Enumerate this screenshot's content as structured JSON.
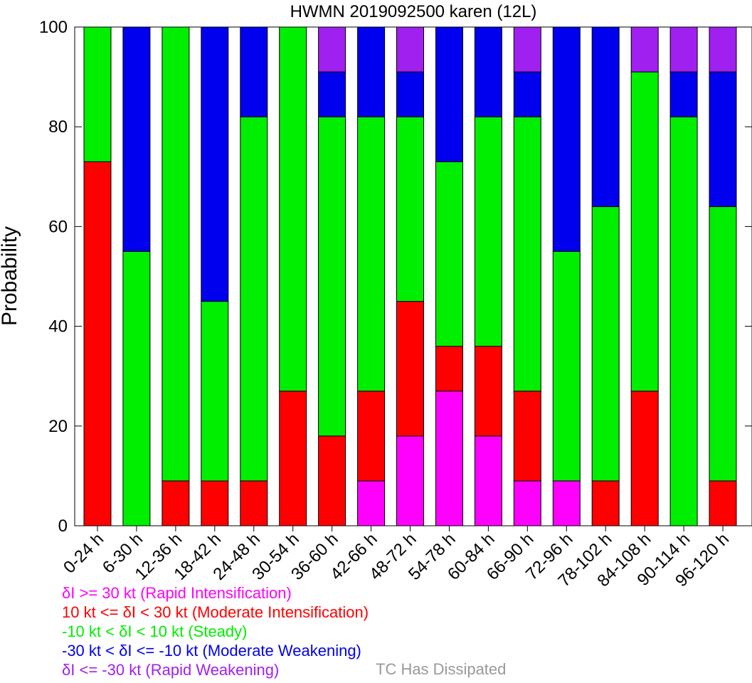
{
  "chart_data": {
    "type": "bar",
    "stacked": true,
    "title": "HWMN 2019092500 karen (12L)",
    "xlabel": "",
    "ylabel": "Probability",
    "ylim": [
      0,
      100
    ],
    "yticks": [
      0,
      20,
      40,
      60,
      80,
      100
    ],
    "grid": false,
    "legend_position": "bottom-left",
    "categories": [
      "0-24 h",
      "6-30 h",
      "12-36 h",
      "18-42 h",
      "24-48 h",
      "30-54 h",
      "36-60 h",
      "42-66 h",
      "48-72 h",
      "54-78 h",
      "60-84 h",
      "66-90 h",
      "72-96 h",
      "78-102 h",
      "84-108 h",
      "90-114 h",
      "96-120 h"
    ],
    "series": [
      {
        "name": "δI >= 30 kt (Rapid Intensification)",
        "color": "#ff00ff",
        "values": [
          0,
          0,
          0,
          0,
          0,
          0,
          0,
          9,
          18,
          27,
          18,
          9,
          9,
          0,
          0,
          0,
          0
        ]
      },
      {
        "name": "10 kt <= δI < 30 kt (Moderate Intensification)",
        "color": "#ff0000",
        "values": [
          73,
          0,
          9,
          9,
          9,
          27,
          18,
          18,
          27,
          9,
          18,
          18,
          0,
          9,
          27,
          0,
          9
        ]
      },
      {
        "name": "-10 kt < δI < 10 kt (Steady)",
        "color": "#00ee00",
        "values": [
          27,
          55,
          91,
          36,
          73,
          73,
          64,
          55,
          37,
          37,
          46,
          55,
          46,
          55,
          64,
          82,
          55
        ]
      },
      {
        "name": "-30 kt < δI <= -10 kt (Moderate Weakening)",
        "color": "#0000ee",
        "values": [
          0,
          45,
          0,
          55,
          18,
          0,
          9,
          18,
          9,
          27,
          18,
          9,
          45,
          36,
          0,
          9,
          27
        ]
      },
      {
        "name": "δI <= -30 kt (Rapid Weakening)",
        "color": "#a020f0",
        "values": [
          0,
          0,
          0,
          0,
          0,
          0,
          9,
          0,
          9,
          0,
          0,
          9,
          0,
          0,
          9,
          9,
          9
        ]
      }
    ],
    "extra_legend": {
      "label": "TC Has Dissipated",
      "color": "#999999"
    }
  }
}
